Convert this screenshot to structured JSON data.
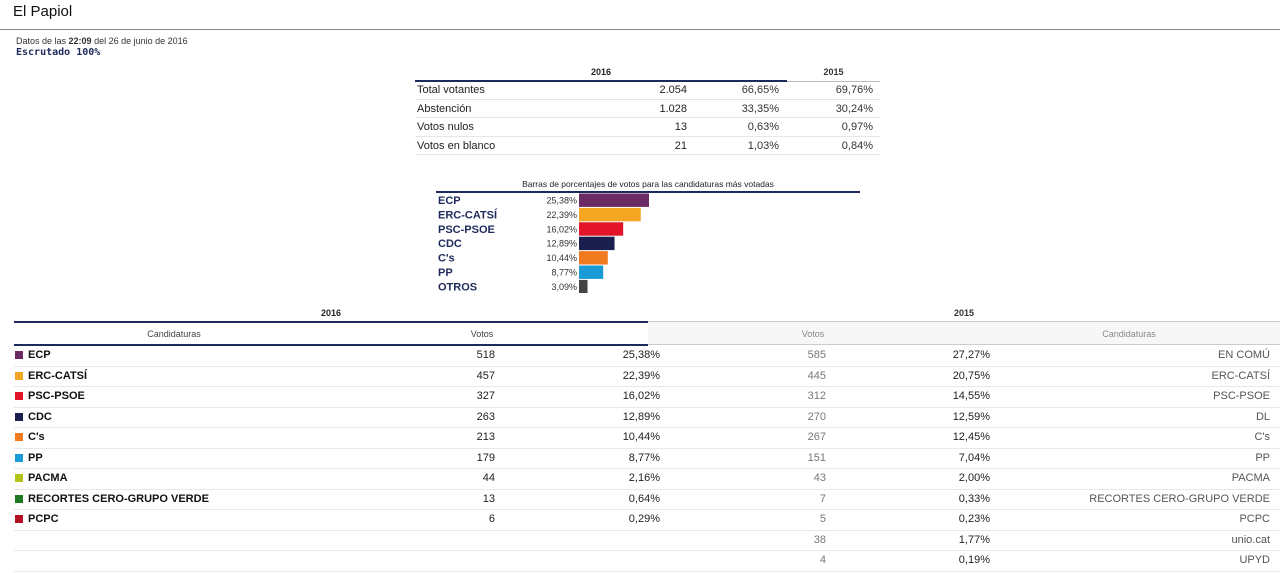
{
  "page": {
    "title": "El Papiol",
    "datos_prefix": "Datos de las",
    "time": "22:09",
    "date_text": "del 26 de junio de 2016",
    "escrutado": "Escrutado 100%"
  },
  "summary": {
    "year_current": "2016",
    "year_previous": "2015",
    "rows": [
      {
        "label": "Total votantes",
        "count": "2.054",
        "pct_2016": "66,65%",
        "pct_2015": "69,76%"
      },
      {
        "label": "Abstención",
        "count": "1.028",
        "pct_2016": "33,35%",
        "pct_2015": "30,24%"
      },
      {
        "label": "Votos nulos",
        "count": "13",
        "pct_2016": "0,63%",
        "pct_2015": "0,97%"
      },
      {
        "label": "Votos en blanco",
        "count": "21",
        "pct_2016": "1,03%",
        "pct_2015": "0,84%"
      }
    ]
  },
  "chart_data": {
    "type": "bar",
    "title": "Barras de porcentajes de votos para las candidaturas más votadas",
    "categories": [
      "ECP",
      "ERC-CATSÍ",
      "PSC-PSOE",
      "CDC",
      "C's",
      "PP",
      "OTROS"
    ],
    "values": [
      25.38,
      22.39,
      16.02,
      12.89,
      10.44,
      8.77,
      3.09
    ],
    "value_labels": [
      "25,38%",
      "22,39%",
      "16,02%",
      "12,89%",
      "10,44%",
      "8,77%",
      "3,09%"
    ],
    "colors": [
      "#6b2a63",
      "#f5a623",
      "#e2152b",
      "#1a1f4d",
      "#f07a20",
      "#1a9ad6",
      "#444444"
    ],
    "orientation": "horizontal",
    "grid": false
  },
  "results": {
    "year_current": "2016",
    "year_previous": "2015",
    "headers": {
      "candidaturas_2016": "Candidaturas",
      "votos_2016": "Votos",
      "votos_2015": "Votos",
      "candidaturas_2015": "Candidaturas"
    },
    "rows": [
      {
        "color": "#6b2a63",
        "party": "ECP",
        "votes_2016": "518",
        "pct_2016": "25,38%",
        "votes_2015": "585",
        "pct_2015": "27,27%",
        "party_2015": "EN COMÚ"
      },
      {
        "color": "#f5a623",
        "party": "ERC-CATSÍ",
        "votes_2016": "457",
        "pct_2016": "22,39%",
        "votes_2015": "445",
        "pct_2015": "20,75%",
        "party_2015": "ERC-CATSÍ"
      },
      {
        "color": "#e2152b",
        "party": "PSC-PSOE",
        "votes_2016": "327",
        "pct_2016": "16,02%",
        "votes_2015": "312",
        "pct_2015": "14,55%",
        "party_2015": "PSC-PSOE"
      },
      {
        "color": "#1a1f4d",
        "party": "CDC",
        "votes_2016": "263",
        "pct_2016": "12,89%",
        "votes_2015": "270",
        "pct_2015": "12,59%",
        "party_2015": "DL"
      },
      {
        "color": "#f07a20",
        "party": "C's",
        "votes_2016": "213",
        "pct_2016": "10,44%",
        "votes_2015": "267",
        "pct_2015": "12,45%",
        "party_2015": "C's"
      },
      {
        "color": "#1a9ad6",
        "party": "PP",
        "votes_2016": "179",
        "pct_2016": "8,77%",
        "votes_2015": "151",
        "pct_2015": "7,04%",
        "party_2015": "PP"
      },
      {
        "color": "#b5c21a",
        "party": "PACMA",
        "votes_2016": "44",
        "pct_2016": "2,16%",
        "votes_2015": "43",
        "pct_2015": "2,00%",
        "party_2015": "PACMA"
      },
      {
        "color": "#1f7a1f",
        "party": "RECORTES CERO-GRUPO VERDE",
        "votes_2016": "13",
        "pct_2016": "0,64%",
        "votes_2015": "7",
        "pct_2015": "0,33%",
        "party_2015": "RECORTES CERO-GRUPO VERDE"
      },
      {
        "color": "#b01020",
        "party": "PCPC",
        "votes_2016": "6",
        "pct_2016": "0,29%",
        "votes_2015": "5",
        "pct_2015": "0,23%",
        "party_2015": "PCPC"
      },
      {
        "color": "",
        "party": "",
        "votes_2016": "",
        "pct_2016": "",
        "votes_2015": "38",
        "pct_2015": "1,77%",
        "party_2015": "unio.cat"
      },
      {
        "color": "",
        "party": "",
        "votes_2016": "",
        "pct_2016": "",
        "votes_2015": "4",
        "pct_2015": "0,19%",
        "party_2015": "UPYD"
      }
    ]
  }
}
